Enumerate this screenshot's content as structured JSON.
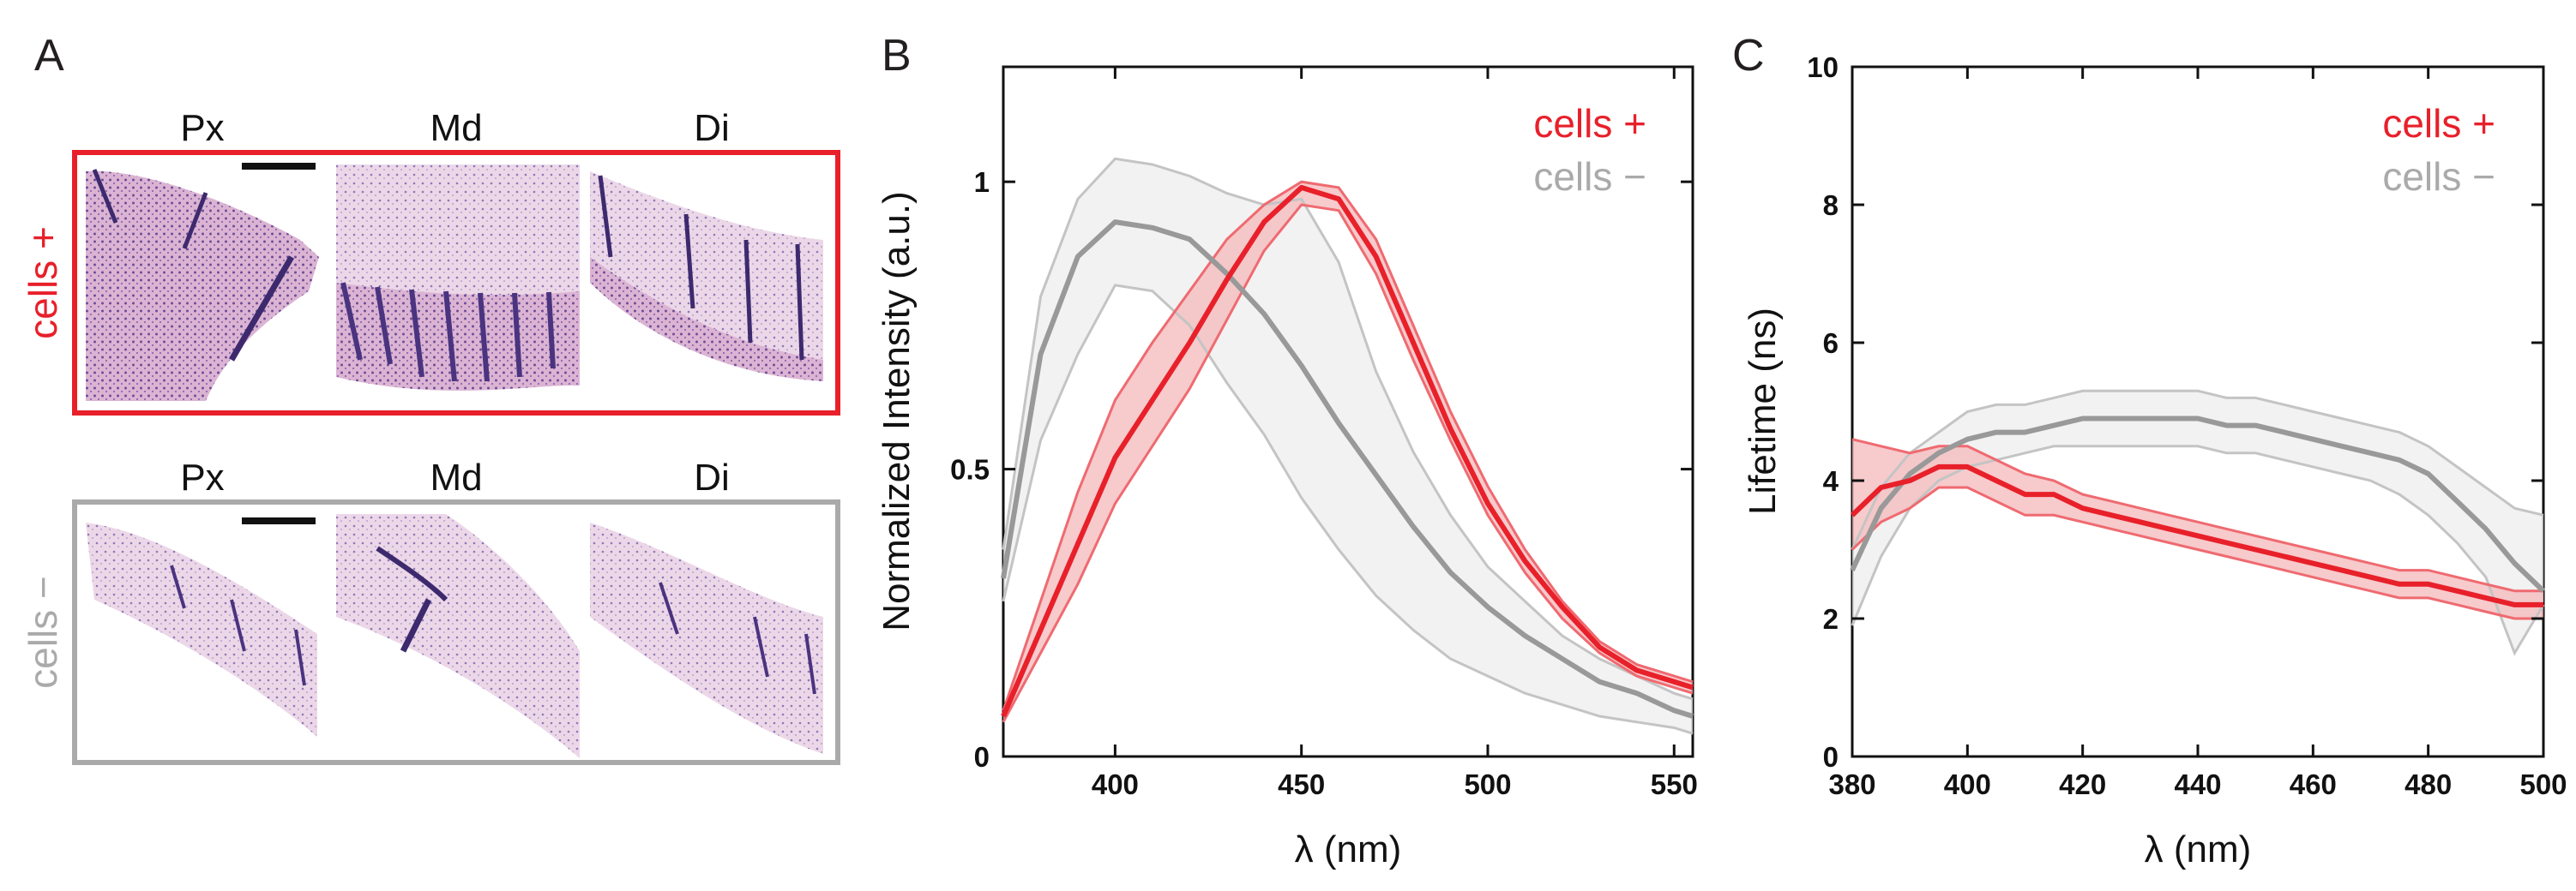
{
  "colors": {
    "red": "#e8202a",
    "gray": "#999999",
    "red_fill": "#f4b8bb",
    "gray_fill": "#eeeeee",
    "he_pink": "#e7c3dc",
    "he_purple": "#5a3f8c"
  },
  "panel_a": {
    "letter": "A",
    "columns": [
      "Px",
      "Md",
      "Di"
    ],
    "rows": [
      {
        "label": "cells +",
        "color": "#e8202a"
      },
      {
        "label": "cells −",
        "color": "#aaaaaa"
      }
    ]
  },
  "chart_data": [
    {
      "panel": "B",
      "type": "line",
      "title": "",
      "xlabel": "λ (nm)",
      "ylabel": "Normalized Intensity (a.u.)",
      "xlim": [
        370,
        555
      ],
      "ylim": [
        0,
        1.2
      ],
      "xticks": [
        400,
        450,
        500,
        550
      ],
      "yticks": [
        0,
        0.5,
        1
      ],
      "ytick_labels": [
        "0",
        "0.5",
        "1"
      ],
      "legend": [
        "cells +",
        "cells −"
      ],
      "legend_position": "top-right",
      "x": [
        370,
        380,
        390,
        400,
        410,
        420,
        430,
        440,
        450,
        460,
        470,
        480,
        490,
        500,
        510,
        520,
        530,
        540,
        550,
        555
      ],
      "series": [
        {
          "name": "cells +",
          "color": "#e8202a",
          "values": [
            0.07,
            0.22,
            0.37,
            0.52,
            0.62,
            0.72,
            0.83,
            0.93,
            0.99,
            0.97,
            0.87,
            0.72,
            0.57,
            0.44,
            0.34,
            0.26,
            0.19,
            0.15,
            0.13,
            0.12
          ],
          "upper": [
            0.08,
            0.27,
            0.46,
            0.62,
            0.72,
            0.81,
            0.9,
            0.96,
            1.0,
            0.99,
            0.9,
            0.75,
            0.6,
            0.47,
            0.36,
            0.27,
            0.2,
            0.16,
            0.14,
            0.13
          ],
          "lower": [
            0.06,
            0.18,
            0.3,
            0.44,
            0.54,
            0.64,
            0.76,
            0.88,
            0.96,
            0.95,
            0.84,
            0.69,
            0.55,
            0.42,
            0.32,
            0.24,
            0.18,
            0.14,
            0.12,
            0.11
          ]
        },
        {
          "name": "cells −",
          "color": "#999999",
          "values": [
            0.31,
            0.7,
            0.87,
            0.93,
            0.92,
            0.9,
            0.84,
            0.77,
            0.68,
            0.58,
            0.49,
            0.4,
            0.32,
            0.26,
            0.21,
            0.17,
            0.13,
            0.11,
            0.08,
            0.07
          ],
          "upper": [
            0.36,
            0.8,
            0.97,
            1.04,
            1.03,
            1.01,
            0.98,
            0.96,
            0.97,
            0.86,
            0.67,
            0.53,
            0.42,
            0.33,
            0.27,
            0.21,
            0.17,
            0.14,
            0.11,
            0.1
          ],
          "lower": [
            0.27,
            0.55,
            0.7,
            0.82,
            0.81,
            0.75,
            0.65,
            0.56,
            0.45,
            0.36,
            0.28,
            0.22,
            0.17,
            0.14,
            0.11,
            0.09,
            0.07,
            0.06,
            0.05,
            0.04
          ]
        }
      ]
    },
    {
      "panel": "C",
      "type": "line",
      "title": "",
      "xlabel": "λ (nm)",
      "ylabel": "Lifetime (ns)",
      "xlim": [
        380,
        500
      ],
      "ylim": [
        0,
        10
      ],
      "xticks": [
        380,
        400,
        420,
        440,
        460,
        480,
        500
      ],
      "yticks": [
        0,
        2,
        4,
        6,
        8,
        10
      ],
      "ytick_labels": [
        "0",
        "2",
        "4",
        "6",
        "8",
        "10"
      ],
      "legend": [
        "cells +",
        "cells −"
      ],
      "legend_position": "top-right",
      "x": [
        380,
        385,
        390,
        395,
        400,
        405,
        410,
        415,
        420,
        425,
        430,
        435,
        440,
        445,
        450,
        455,
        460,
        465,
        470,
        475,
        480,
        485,
        490,
        495,
        500
      ],
      "series": [
        {
          "name": "cells +",
          "color": "#e8202a",
          "values": [
            3.5,
            3.9,
            4.0,
            4.2,
            4.2,
            4.0,
            3.8,
            3.8,
            3.6,
            3.5,
            3.4,
            3.3,
            3.2,
            3.1,
            3.0,
            2.9,
            2.8,
            2.7,
            2.6,
            2.5,
            2.5,
            2.4,
            2.3,
            2.2,
            2.2
          ],
          "upper": [
            4.6,
            4.5,
            4.4,
            4.5,
            4.5,
            4.3,
            4.1,
            4.0,
            3.8,
            3.7,
            3.6,
            3.5,
            3.4,
            3.3,
            3.2,
            3.1,
            3.0,
            2.9,
            2.8,
            2.7,
            2.7,
            2.6,
            2.5,
            2.4,
            2.4
          ],
          "lower": [
            3.0,
            3.4,
            3.6,
            3.9,
            3.9,
            3.7,
            3.5,
            3.5,
            3.4,
            3.3,
            3.2,
            3.1,
            3.0,
            2.9,
            2.8,
            2.7,
            2.6,
            2.5,
            2.4,
            2.3,
            2.3,
            2.2,
            2.1,
            2.0,
            2.0
          ]
        },
        {
          "name": "cells −",
          "color": "#999999",
          "values": [
            2.7,
            3.6,
            4.1,
            4.4,
            4.6,
            4.7,
            4.7,
            4.8,
            4.9,
            4.9,
            4.9,
            4.9,
            4.9,
            4.8,
            4.8,
            4.7,
            4.6,
            4.5,
            4.4,
            4.3,
            4.1,
            3.7,
            3.3,
            2.8,
            2.4
          ],
          "upper": [
            3.0,
            3.9,
            4.4,
            4.7,
            5.0,
            5.1,
            5.1,
            5.2,
            5.3,
            5.3,
            5.3,
            5.3,
            5.3,
            5.2,
            5.2,
            5.1,
            5.0,
            4.9,
            4.8,
            4.7,
            4.5,
            4.2,
            3.9,
            3.6,
            3.5
          ],
          "lower": [
            1.9,
            2.9,
            3.6,
            4.0,
            4.2,
            4.3,
            4.4,
            4.5,
            4.5,
            4.5,
            4.5,
            4.5,
            4.5,
            4.4,
            4.4,
            4.3,
            4.2,
            4.1,
            4.0,
            3.8,
            3.5,
            3.1,
            2.6,
            1.5,
            2.2
          ]
        }
      ]
    }
  ]
}
